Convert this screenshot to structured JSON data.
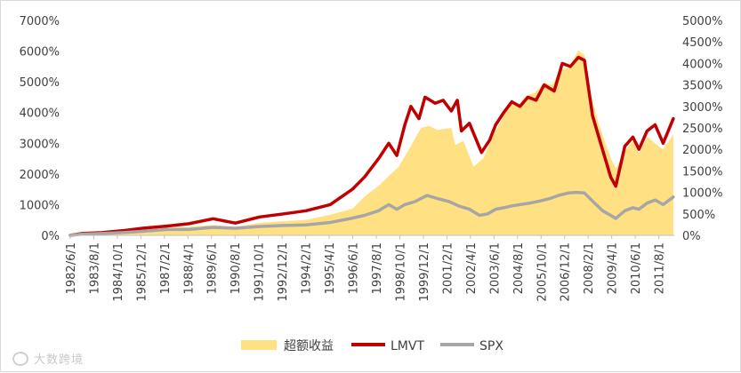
{
  "chart_data": {
    "type": "area",
    "title": "",
    "x": [
      "1982/6/1",
      "1983/8/1",
      "1984/10/1",
      "1985/12/1",
      "1987/2/1",
      "1988/4/1",
      "1989/6/1",
      "1990/8/1",
      "1991/10/1",
      "1992/12/1",
      "1994/2/1",
      "1995/4/1",
      "1996/6/1",
      "1997/8/1",
      "1998/10/1",
      "1999/12/1",
      "2001/2/1",
      "2002/4/1",
      "2003/6/1",
      "2004/8/1",
      "2005/10/1",
      "2006/12/1",
      "2008/2/1",
      "2009/4/1",
      "2010/6/1",
      "2011/8/1"
    ],
    "left_axis": {
      "min": 0,
      "max": 7000,
      "ticks": [
        0,
        1000,
        2000,
        3000,
        4000,
        5000,
        6000,
        7000
      ],
      "tick_labels": [
        "0%",
        "1000%",
        "2000%",
        "3000%",
        "4000%",
        "5000%",
        "6000%",
        "7000%"
      ]
    },
    "right_axis": {
      "min": 0,
      "max": 5000,
      "ticks": [
        0,
        500,
        1000,
        1500,
        2000,
        2500,
        3000,
        3500,
        4000,
        4500,
        5000
      ],
      "tick_labels": [
        "0%",
        "500%",
        "1000%",
        "1500%",
        "2000%",
        "2500%",
        "3000%",
        "3500%",
        "4000%",
        "4500%",
        "5000%"
      ]
    },
    "series": [
      {
        "name": "超额收益",
        "kind": "area",
        "axis": "right",
        "color": "#ffe082",
        "points": [
          [
            1982.42,
            0
          ],
          [
            1983,
            25
          ],
          [
            1984,
            35
          ],
          [
            1985,
            60
          ],
          [
            1986,
            120
          ],
          [
            1987.2,
            170
          ],
          [
            1988.3,
            200
          ],
          [
            1989.5,
            240
          ],
          [
            1990.6,
            200
          ],
          [
            1991.8,
            290
          ],
          [
            1993,
            330
          ],
          [
            1994.1,
            360
          ],
          [
            1995.3,
            480
          ],
          [
            1996.4,
            620
          ],
          [
            1997,
            900
          ],
          [
            1997.7,
            1150
          ],
          [
            1998.2,
            1380
          ],
          [
            1998.7,
            1600
          ],
          [
            1999.2,
            2000
          ],
          [
            1999.8,
            2500
          ],
          [
            2000.2,
            2550
          ],
          [
            2000.6,
            2450
          ],
          [
            2001.3,
            2500
          ],
          [
            2001.5,
            2100
          ],
          [
            2001.9,
            2200
          ],
          [
            2002.4,
            1600
          ],
          [
            2002.9,
            1800
          ],
          [
            2003.4,
            2350
          ],
          [
            2003.7,
            2600
          ],
          [
            2004.2,
            3100
          ],
          [
            2004.6,
            3000
          ],
          [
            2005,
            3250
          ],
          [
            2005.4,
            3300
          ],
          [
            2005.9,
            3550
          ],
          [
            2006.3,
            3500
          ],
          [
            2006.7,
            3850
          ],
          [
            2007.1,
            3900
          ],
          [
            2007.6,
            4300
          ],
          [
            2007.9,
            4200
          ],
          [
            2008.2,
            3300
          ],
          [
            2008.6,
            2600
          ],
          [
            2009.2,
            1800
          ],
          [
            2009.45,
            1550
          ],
          [
            2009.9,
            1950
          ],
          [
            2010.3,
            2200
          ],
          [
            2010.6,
            1900
          ],
          [
            2011,
            2300
          ],
          [
            2011.5,
            2100
          ],
          [
            2011.8,
            2000
          ],
          [
            2012.3,
            2350
          ]
        ]
      },
      {
        "name": "LMVT",
        "kind": "line",
        "axis": "left",
        "color": "#c00000",
        "points": [
          [
            1982.42,
            0
          ],
          [
            1983,
            60
          ],
          [
            1984,
            90
          ],
          [
            1985,
            150
          ],
          [
            1986,
            230
          ],
          [
            1987.2,
            300
          ],
          [
            1988.3,
            380
          ],
          [
            1989.5,
            540
          ],
          [
            1990.6,
            400
          ],
          [
            1991.8,
            600
          ],
          [
            1993,
            700
          ],
          [
            1994.1,
            800
          ],
          [
            1995.3,
            1000
          ],
          [
            1996.4,
            1500
          ],
          [
            1997,
            1900
          ],
          [
            1997.7,
            2500
          ],
          [
            1998.2,
            3000
          ],
          [
            1998.6,
            2600
          ],
          [
            1999,
            3600
          ],
          [
            1999.3,
            4200
          ],
          [
            1999.7,
            3800
          ],
          [
            2000,
            4500
          ],
          [
            2000.5,
            4300
          ],
          [
            2000.9,
            4400
          ],
          [
            2001.3,
            4050
          ],
          [
            2001.6,
            4400
          ],
          [
            2001.8,
            3400
          ],
          [
            2002.2,
            3650
          ],
          [
            2002.8,
            2700
          ],
          [
            2003.2,
            3100
          ],
          [
            2003.5,
            3600
          ],
          [
            2003.9,
            4000
          ],
          [
            2004.3,
            4350
          ],
          [
            2004.7,
            4200
          ],
          [
            2005.1,
            4500
          ],
          [
            2005.5,
            4400
          ],
          [
            2005.9,
            4900
          ],
          [
            2006.4,
            4700
          ],
          [
            2006.8,
            5600
          ],
          [
            2007.2,
            5500
          ],
          [
            2007.6,
            5800
          ],
          [
            2007.9,
            5700
          ],
          [
            2008.3,
            3900
          ],
          [
            2008.7,
            3000
          ],
          [
            2009.2,
            1900
          ],
          [
            2009.45,
            1600
          ],
          [
            2009.9,
            2900
          ],
          [
            2010.3,
            3200
          ],
          [
            2010.6,
            2800
          ],
          [
            2011,
            3400
          ],
          [
            2011.4,
            3600
          ],
          [
            2011.8,
            3000
          ],
          [
            2012.3,
            3800
          ]
        ]
      },
      {
        "name": "SPX",
        "kind": "line",
        "axis": "left",
        "color": "#a6a6a6",
        "points": [
          [
            1982.42,
            0
          ],
          [
            1983,
            40
          ],
          [
            1984,
            60
          ],
          [
            1985,
            90
          ],
          [
            1986,
            130
          ],
          [
            1987.2,
            190
          ],
          [
            1988.3,
            190
          ],
          [
            1989.5,
            260
          ],
          [
            1990.6,
            230
          ],
          [
            1991.8,
            290
          ],
          [
            1993,
            320
          ],
          [
            1994.1,
            340
          ],
          [
            1995.3,
            420
          ],
          [
            1996.4,
            560
          ],
          [
            1997,
            650
          ],
          [
            1997.7,
            800
          ],
          [
            1998.2,
            1000
          ],
          [
            1998.6,
            850
          ],
          [
            1999,
            1000
          ],
          [
            1999.5,
            1100
          ],
          [
            2000.1,
            1300
          ],
          [
            2000.6,
            1200
          ],
          [
            2001.2,
            1100
          ],
          [
            2001.7,
            950
          ],
          [
            2002.2,
            850
          ],
          [
            2002.7,
            650
          ],
          [
            2003.1,
            700
          ],
          [
            2003.5,
            850
          ],
          [
            2003.9,
            900
          ],
          [
            2004.3,
            960
          ],
          [
            2004.7,
            1000
          ],
          [
            2005.2,
            1050
          ],
          [
            2005.7,
            1120
          ],
          [
            2006.2,
            1200
          ],
          [
            2006.6,
            1300
          ],
          [
            2007.1,
            1380
          ],
          [
            2007.5,
            1400
          ],
          [
            2007.9,
            1380
          ],
          [
            2008.4,
            1050
          ],
          [
            2008.8,
            800
          ],
          [
            2009.2,
            650
          ],
          [
            2009.45,
            550
          ],
          [
            2009.9,
            800
          ],
          [
            2010.3,
            900
          ],
          [
            2010.6,
            850
          ],
          [
            2011,
            1050
          ],
          [
            2011.4,
            1150
          ],
          [
            2011.8,
            1000
          ],
          [
            2012.3,
            1250
          ]
        ]
      }
    ],
    "legend": {
      "placement": "bottom",
      "entries": [
        "超额收益",
        "LMVT",
        "SPX"
      ]
    }
  },
  "watermark": {
    "text": "大数跨境"
  }
}
